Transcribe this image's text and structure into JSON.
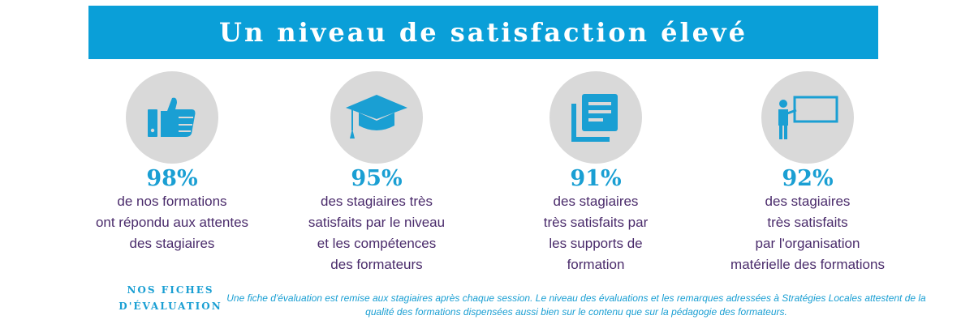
{
  "colors": {
    "banner": "#0a9fd8",
    "accent": "#1a9fd3",
    "text": "#4a2b6b",
    "circle": "#d9d9d9"
  },
  "banner": {
    "title": "Un niveau de satisfaction élevé"
  },
  "stats": [
    {
      "icon": "thumbs-up-icon",
      "percent": "98%",
      "description": "de nos formations\nont répondu aux attentes\ndes stagiaires"
    },
    {
      "icon": "graduation-cap-icon",
      "percent": "95%",
      "description": "des stagiaires très\nsatisfaits par le niveau\net les compétences\ndes formateurs"
    },
    {
      "icon": "documents-icon",
      "percent": "91%",
      "description": "des stagiaires\ntrès satisfaits par\nles supports de\nformation"
    },
    {
      "icon": "teacher-board-icon",
      "percent": "92%",
      "description": "des stagiaires\ntrès satisfaits\npar l'organisation\nmatérielle des formations"
    }
  ],
  "footer": {
    "heading": "NOS FICHES\nD'ÉVALUATION",
    "note": "Une fiche d'évaluation est remise aux stagiaires après chaque session. Le niveau des évaluations et les remarques adressées à Stratégies Locales attestent de la qualité des formations dispensées aussi bien sur le contenu que sur la pédagogie des formateurs."
  }
}
